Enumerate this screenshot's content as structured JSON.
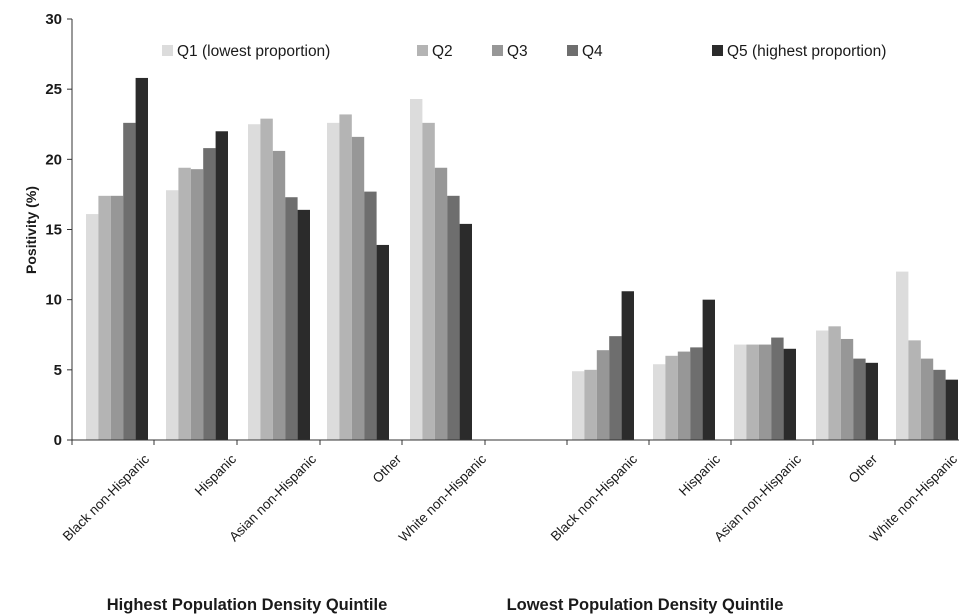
{
  "chart_data": {
    "type": "bar",
    "ylabel": "Positivity (%)",
    "xlabel": "",
    "ylim": [
      0,
      30
    ],
    "yticks": [
      0,
      5,
      10,
      15,
      20,
      25,
      30
    ],
    "grid": false,
    "legend_position": "top",
    "groups": [
      {
        "title": "Highest Population Density Quintile",
        "categories": [
          "Black non-Hispanic",
          "Hispanic",
          "Asian non-Hispanic",
          "Other",
          "White non-Hispanic"
        ],
        "series": [
          {
            "name": "Q1 (lowest proportion)",
            "values": [
              16.1,
              17.8,
              22.5,
              22.6,
              24.3
            ]
          },
          {
            "name": "Q2",
            "values": [
              17.4,
              19.4,
              22.9,
              23.2,
              22.6
            ]
          },
          {
            "name": "Q3",
            "values": [
              17.4,
              19.3,
              20.6,
              21.6,
              19.4
            ]
          },
          {
            "name": "Q4",
            "values": [
              22.6,
              20.8,
              17.3,
              17.7,
              17.4
            ]
          },
          {
            "name": "Q5 (highest proportion)",
            "values": [
              25.8,
              22.0,
              16.4,
              13.9,
              15.4
            ]
          }
        ]
      },
      {
        "title": "Lowest Population Density Quintile",
        "categories": [
          "Black non-Hispanic",
          "Hispanic",
          "Asian non-Hispanic",
          "Other",
          "White non-Hispanic"
        ],
        "series": [
          {
            "name": "Q1 (lowest proportion)",
            "values": [
              4.9,
              5.4,
              6.8,
              7.8,
              12.0
            ]
          },
          {
            "name": "Q2",
            "values": [
              5.0,
              6.0,
              6.8,
              8.1,
              7.1
            ]
          },
          {
            "name": "Q3",
            "values": [
              6.4,
              6.3,
              6.8,
              7.2,
              5.8
            ]
          },
          {
            "name": "Q4",
            "values": [
              7.4,
              6.6,
              7.3,
              5.8,
              5.0
            ]
          },
          {
            "name": "Q5 (highest proportion)",
            "values": [
              10.6,
              10.0,
              6.5,
              5.5,
              4.3
            ]
          }
        ]
      }
    ],
    "series_colors": [
      "#dcdcdc",
      "#b4b4b4",
      "#979797",
      "#6e6e6e",
      "#2b2b2b"
    ]
  }
}
